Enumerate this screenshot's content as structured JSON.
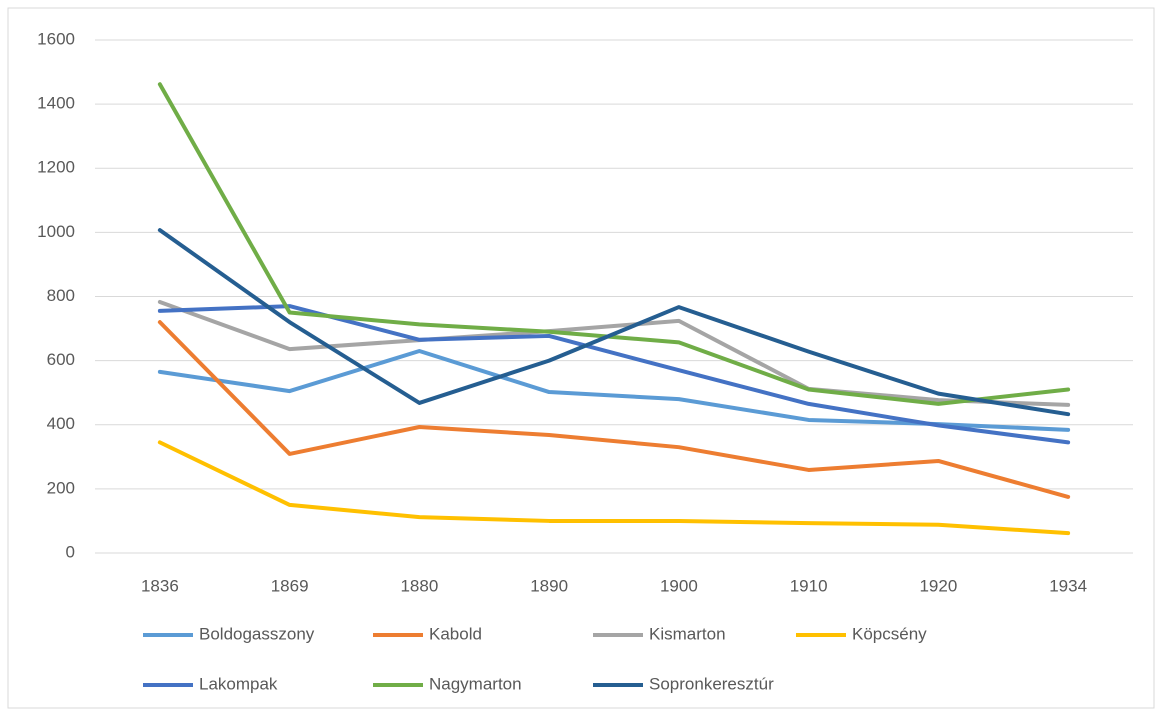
{
  "chart_data": {
    "type": "line",
    "categories": [
      "1836",
      "1869",
      "1880",
      "1890",
      "1900",
      "1910",
      "1920",
      "1934"
    ],
    "series": [
      {
        "name": "Boldogasszony",
        "color": "#5b9bd5",
        "values": [
          565,
          505,
          630,
          502,
          480,
          415,
          402,
          384
        ]
      },
      {
        "name": "Kabold",
        "color": "#ed7d31",
        "values": [
          720,
          309,
          393,
          368,
          330,
          259,
          287,
          175
        ]
      },
      {
        "name": "Kismarton",
        "color": "#a5a5a5",
        "values": [
          783,
          636,
          664,
          692,
          724,
          512,
          477,
          462
        ]
      },
      {
        "name": "Köpcsény",
        "color": "#ffc000",
        "values": [
          345,
          150,
          112,
          100,
          100,
          93,
          88,
          62
        ]
      },
      {
        "name": "Lakompak",
        "color": "#4472c4",
        "values": [
          755,
          770,
          665,
          677,
          570,
          465,
          398,
          345
        ]
      },
      {
        "name": "Nagymarton",
        "color": "#70ad47",
        "values": [
          1462,
          750,
          713,
          690,
          657,
          510,
          465,
          510
        ]
      },
      {
        "name": "Sopronkeresztúr",
        "color": "#255e91",
        "values": [
          1007,
          720,
          468,
          600,
          767,
          628,
          497,
          433
        ]
      }
    ],
    "ylim": [
      0,
      1600
    ],
    "yticks": [
      0,
      200,
      400,
      600,
      800,
      1000,
      1200,
      1400,
      1600
    ],
    "grid": true,
    "legend": "bottom"
  }
}
